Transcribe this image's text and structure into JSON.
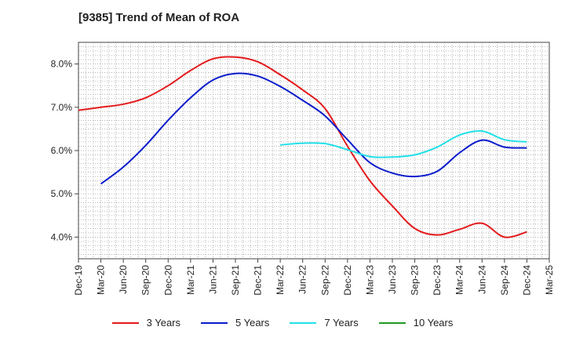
{
  "chart_data": {
    "type": "line",
    "title": "[9385]  Trend of Mean of ROA",
    "xlabel": "",
    "ylabel": "",
    "ylim": [
      3.5,
      8.5
    ],
    "yticks": [
      4.0,
      5.0,
      6.0,
      7.0,
      8.0
    ],
    "ytick_labels": [
      "4.0%",
      "5.0%",
      "6.0%",
      "7.0%",
      "8.0%"
    ],
    "grid": true,
    "legend_position": "bottom",
    "categories": [
      "Dec-19",
      "Mar-20",
      "Jun-20",
      "Sep-20",
      "Dec-20",
      "Mar-21",
      "Jun-21",
      "Sep-21",
      "Dec-21",
      "Mar-22",
      "Jun-22",
      "Sep-22",
      "Dec-22",
      "Mar-23",
      "Jun-23",
      "Sep-23",
      "Dec-23",
      "Mar-24",
      "Jun-24",
      "Sep-24",
      "Dec-24",
      "Mar-25"
    ],
    "series": [
      {
        "name": "3 Years",
        "color": "#e31a1c",
        "values": [
          6.93,
          7.0,
          7.07,
          7.22,
          7.5,
          7.85,
          8.12,
          8.16,
          8.05,
          7.75,
          7.4,
          6.97,
          6.1,
          5.3,
          4.72,
          4.2,
          4.05,
          4.18,
          4.32,
          4.0,
          4.12,
          null
        ]
      },
      {
        "name": "5 Years",
        "color": "#0a1ccc",
        "values": [
          null,
          5.23,
          5.62,
          6.12,
          6.7,
          7.22,
          7.63,
          7.78,
          7.72,
          7.48,
          7.16,
          6.8,
          6.25,
          5.72,
          5.48,
          5.4,
          5.52,
          5.95,
          6.24,
          6.08,
          6.06,
          null
        ]
      },
      {
        "name": "7 Years",
        "color": "#22e0e8",
        "values": [
          null,
          null,
          null,
          null,
          null,
          null,
          null,
          null,
          null,
          6.13,
          6.17,
          6.16,
          6.02,
          5.86,
          5.85,
          5.9,
          6.08,
          6.36,
          6.45,
          6.25,
          6.2,
          null
        ]
      },
      {
        "name": "10 Years",
        "color": "#1f9a1f",
        "values": [
          null,
          null,
          null,
          null,
          null,
          null,
          null,
          null,
          null,
          null,
          null,
          null,
          null,
          null,
          null,
          null,
          null,
          null,
          null,
          null,
          null,
          null
        ]
      }
    ]
  }
}
